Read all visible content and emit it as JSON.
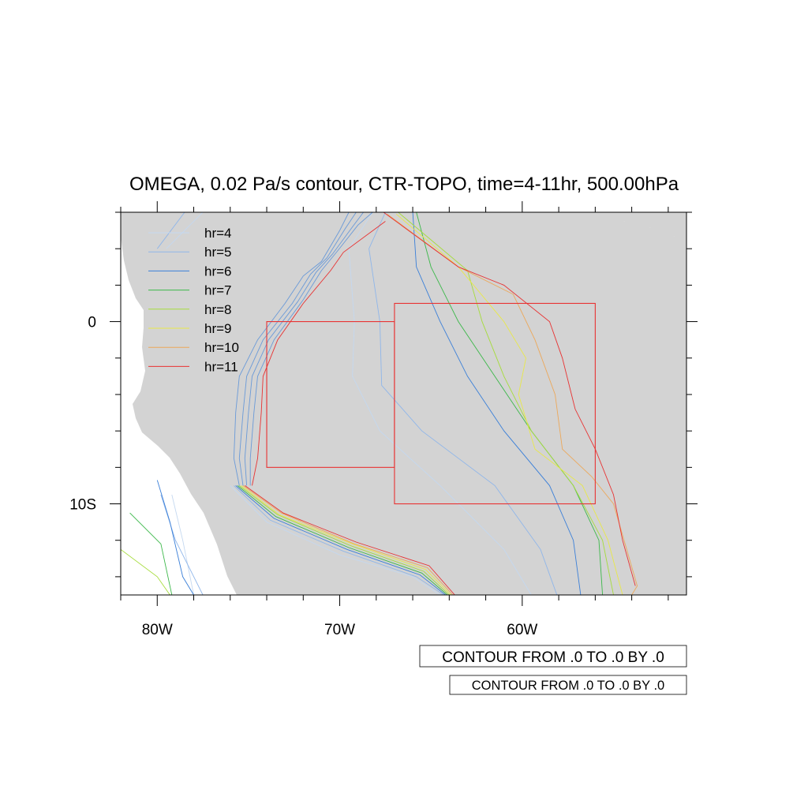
{
  "title": "OMEGA, 0.02 Pa/s contour, CTR-TOPO, time=4-11hr, 500.00hPa",
  "map": {
    "lon_range": [
      -82,
      -51
    ],
    "lat_range": [
      -15,
      6
    ],
    "x_tick_labels": [
      {
        "lon": -80,
        "label": "80W"
      },
      {
        "lon": -70,
        "label": "70W"
      },
      {
        "lon": -60,
        "label": "60W"
      }
    ],
    "y_tick_labels": [
      {
        "lat": 0,
        "label": "0"
      },
      {
        "lat": -10,
        "label": "10S"
      }
    ],
    "land_color": "#d3d3d3",
    "ocean_color": "#ffffff"
  },
  "legend": [
    {
      "label": "hr=4",
      "color": "#c4d8f0"
    },
    {
      "label": "hr=5",
      "color": "#8fb6ea"
    },
    {
      "label": "hr=6",
      "color": "#3a7fd8"
    },
    {
      "label": "hr=7",
      "color": "#3cb84a"
    },
    {
      "label": "hr=8",
      "color": "#a6dc3c"
    },
    {
      "label": "hr=9",
      "color": "#e8e84a"
    },
    {
      "label": "hr=10",
      "color": "#eca85a"
    },
    {
      "label": "hr=11",
      "color": "#e83232"
    }
  ],
  "contours": [
    {
      "hr": "hr=4",
      "color": "#c4d8f0",
      "lines": [
        [
          [
            -77.5,
            6
          ],
          [
            -79.5,
            4
          ]
        ],
        [
          [
            -68.2,
            6
          ],
          [
            -69.5,
            4
          ],
          [
            -69.2,
            0
          ],
          [
            -69.3,
            -3
          ],
          [
            -67.8,
            -6
          ],
          [
            -64.5,
            -9
          ],
          [
            -61,
            -12.5
          ],
          [
            -59.5,
            -15
          ]
        ],
        [
          [
            -79.2,
            -9.5
          ],
          [
            -78.6,
            -12
          ],
          [
            -78,
            -15
          ]
        ],
        [
          [
            -76,
            -9
          ],
          [
            -74,
            -11
          ],
          [
            -70,
            -12.8
          ],
          [
            -66,
            -14
          ],
          [
            -64.5,
            -15
          ]
        ]
      ]
    },
    {
      "hr": "hr=5",
      "color": "#8fb6ea",
      "lines": [
        [
          [
            -78.5,
            6
          ],
          [
            -80,
            4
          ]
        ],
        [
          [
            -67.5,
            6
          ],
          [
            -68.4,
            4
          ],
          [
            -67.8,
            0
          ],
          [
            -67.7,
            -3.5
          ],
          [
            -65.5,
            -6
          ],
          [
            -61.5,
            -9
          ],
          [
            -59,
            -12.5
          ],
          [
            -58.1,
            -15
          ]
        ],
        [
          [
            -79.8,
            -9.5
          ],
          [
            -79,
            -12
          ],
          [
            -77.5,
            -15
          ]
        ],
        [
          [
            -75.8,
            -9
          ],
          [
            -73.8,
            -10.9
          ],
          [
            -69.8,
            -12.6
          ],
          [
            -65.8,
            -14
          ],
          [
            -64.3,
            -15
          ]
        ]
      ]
    },
    {
      "hr": "hr=6",
      "color": "#3a7fd8",
      "lines": [
        [
          [
            -66,
            6
          ],
          [
            -65.8,
            3
          ],
          [
            -64.5,
            0
          ],
          [
            -63,
            -3
          ],
          [
            -61,
            -6
          ],
          [
            -58.5,
            -9
          ],
          [
            -57.2,
            -12
          ],
          [
            -56.8,
            -15
          ]
        ],
        [
          [
            -80,
            -8.7
          ],
          [
            -79.3,
            -11
          ],
          [
            -78.6,
            -14
          ],
          [
            -78,
            -15
          ]
        ],
        [
          [
            -75.7,
            -9
          ],
          [
            -73.6,
            -10.8
          ],
          [
            -69.6,
            -12.5
          ],
          [
            -65.6,
            -13.9
          ],
          [
            -64.2,
            -15
          ]
        ]
      ]
    },
    {
      "hr": "hr=7",
      "color": "#3cb84a",
      "lines": [
        [
          [
            -65.8,
            6
          ],
          [
            -65,
            3
          ],
          [
            -63.5,
            0
          ],
          [
            -61.5,
            -3
          ],
          [
            -59.5,
            -6
          ],
          [
            -57.2,
            -9
          ],
          [
            -55.8,
            -12
          ],
          [
            -55.6,
            -15
          ]
        ],
        [
          [
            -81.5,
            -10.5
          ],
          [
            -79.8,
            -12.2
          ],
          [
            -79.2,
            -15
          ]
        ],
        [
          [
            -75.6,
            -9
          ],
          [
            -73.5,
            -10.7
          ],
          [
            -69.5,
            -12.4
          ],
          [
            -65.5,
            -13.8
          ],
          [
            -64.1,
            -15
          ]
        ]
      ]
    },
    {
      "hr": "hr=8",
      "color": "#a6dc3c",
      "lines": [
        [
          [
            -66.8,
            6
          ],
          [
            -63,
            2.8
          ],
          [
            -62.2,
            0
          ],
          [
            -61,
            -3
          ],
          [
            -59.5,
            -6
          ],
          [
            -57.2,
            -9
          ],
          [
            -55.6,
            -12
          ],
          [
            -55,
            -15
          ]
        ],
        [
          [
            -82,
            -12.5
          ],
          [
            -80,
            -14
          ],
          [
            -79.3,
            -15
          ]
        ],
        [
          [
            -75.5,
            -9
          ],
          [
            -73.4,
            -10.6
          ],
          [
            -69.4,
            -12.3
          ],
          [
            -65.4,
            -13.7
          ],
          [
            -64,
            -15
          ]
        ]
      ]
    },
    {
      "hr": "hr=9",
      "color": "#e8e84a",
      "lines": [
        [
          [
            -66.9,
            5.9
          ],
          [
            -63.5,
            3
          ],
          [
            -61,
            0
          ],
          [
            -59.8,
            -2
          ],
          [
            -60.2,
            -4
          ],
          [
            -59.3,
            -7
          ],
          [
            -56.7,
            -9
          ],
          [
            -55.3,
            -12
          ],
          [
            -54.5,
            -15
          ]
        ],
        [
          [
            -75.4,
            -9
          ],
          [
            -73.3,
            -10.6
          ],
          [
            -69.3,
            -12.2
          ],
          [
            -65.3,
            -13.6
          ],
          [
            -63.9,
            -15
          ]
        ]
      ]
    },
    {
      "hr": "hr=10",
      "color": "#eca85a",
      "lines": [
        [
          [
            -67.4,
            5.9
          ],
          [
            -63.5,
            3
          ],
          [
            -60.5,
            1.5
          ],
          [
            -59.3,
            -1
          ],
          [
            -58.2,
            -4
          ],
          [
            -57.8,
            -7
          ],
          [
            -56.2,
            -8.5
          ],
          [
            -55,
            -10
          ],
          [
            -53.7,
            -14.5
          ],
          [
            -54,
            -15
          ]
        ],
        [
          [
            -75.3,
            -9
          ],
          [
            -73.2,
            -10.5
          ],
          [
            -69.2,
            -12.2
          ],
          [
            -65.2,
            -13.5
          ],
          [
            -63.8,
            -15
          ]
        ]
      ]
    },
    {
      "hr": "hr=11",
      "color": "#e83232",
      "lines": [
        [
          [
            -67.6,
            6
          ],
          [
            -63.5,
            3
          ],
          [
            -61,
            2
          ],
          [
            -58.5,
            0
          ],
          [
            -57.8,
            -2
          ],
          [
            -57.1,
            -4.8
          ],
          [
            -56,
            -7
          ],
          [
            -55,
            -9.5
          ],
          [
            -54.5,
            -12
          ],
          [
            -53.8,
            -14.5
          ]
        ],
        [
          [
            -75.2,
            -9
          ],
          [
            -73.1,
            -10.5
          ],
          [
            -69.1,
            -12.1
          ],
          [
            -65.1,
            -13.4
          ],
          [
            -63.7,
            -15
          ]
        ]
      ]
    },
    {
      "hr": "west-bundle",
      "color": "#6a9ad8",
      "lines": [
        [
          [
            -75.5,
            -9
          ],
          [
            -75.8,
            -7.5
          ],
          [
            -75.7,
            -5
          ],
          [
            -75.5,
            -3
          ],
          [
            -74.5,
            -1
          ],
          [
            -73,
            1
          ],
          [
            -72,
            2.5
          ],
          [
            -71,
            3.3
          ],
          [
            -70,
            5
          ],
          [
            -69.5,
            6
          ]
        ],
        [
          [
            -75.3,
            -9
          ],
          [
            -75.5,
            -7.5
          ],
          [
            -75.3,
            -5
          ],
          [
            -75.1,
            -3
          ],
          [
            -74.2,
            -1
          ],
          [
            -72.6,
            1
          ],
          [
            -71.6,
            2.6
          ],
          [
            -70.7,
            3.5
          ],
          [
            -69.7,
            5.1
          ],
          [
            -69.1,
            6
          ]
        ],
        [
          [
            -75.1,
            -9
          ],
          [
            -75.2,
            -7.5
          ],
          [
            -75,
            -5
          ],
          [
            -74.8,
            -3
          ],
          [
            -73.9,
            -1
          ],
          [
            -72.3,
            1.1
          ],
          [
            -71.3,
            2.7
          ],
          [
            -70.4,
            3.7
          ],
          [
            -69.3,
            5.2
          ],
          [
            -68.7,
            6
          ]
        ],
        [
          [
            -74.9,
            -9
          ],
          [
            -74.9,
            -7.5
          ],
          [
            -74.7,
            -5
          ],
          [
            -74.5,
            -3
          ],
          [
            -73.6,
            -1
          ],
          [
            -72,
            1.2
          ],
          [
            -71,
            2.8
          ],
          [
            -70.1,
            3.9
          ],
          [
            -69,
            5.3
          ],
          [
            -68.2,
            6
          ]
        ]
      ]
    },
    {
      "hr": "hr=11-west",
      "color": "#e83232",
      "lines": [
        [
          [
            -74.8,
            -9
          ],
          [
            -74.5,
            -7.5
          ],
          [
            -74.3,
            -5
          ],
          [
            -74.2,
            -3
          ],
          [
            -73.4,
            -1
          ],
          [
            -72,
            1
          ],
          [
            -70.5,
            2.8
          ],
          [
            -69.8,
            3.8
          ],
          [
            -67.5,
            5.5
          ]
        ]
      ]
    }
  ],
  "boxes": [
    {
      "lon": [
        -74,
        -67
      ],
      "lat": [
        -8,
        0
      ],
      "color": "#e83232"
    },
    {
      "lon": [
        -67,
        -56
      ],
      "lat": [
        -10,
        1
      ],
      "color": "#e83232"
    }
  ],
  "info_labels": [
    "CONTOUR FROM .0 TO .0 BY .0",
    "CONTOUR FROM .0 TO .0 BY .0"
  ]
}
